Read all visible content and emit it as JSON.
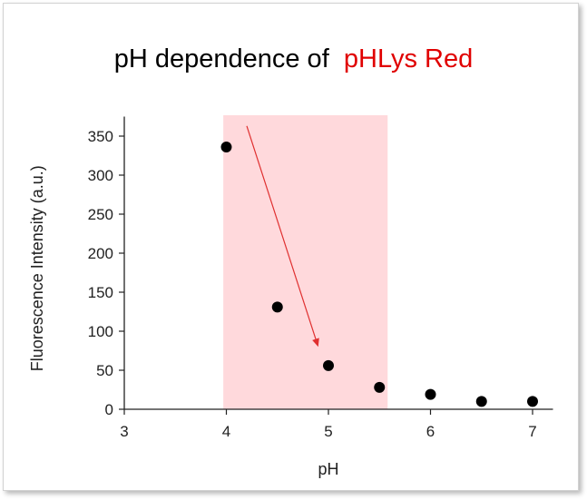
{
  "title": {
    "main": "pH dependence of  ",
    "accent": "pHLys Red"
  },
  "colors": {
    "accent": "#e00000",
    "highlight": "#ffd9dc",
    "arrow": "#e03030",
    "points": "#000000"
  },
  "chart_data": {
    "type": "scatter",
    "title": "pH dependence of  pHLys Red",
    "xlabel": "pH",
    "ylabel": "Fluorescence Intensity (a.u.)",
    "xlim": [
      3,
      7.2
    ],
    "ylim": [
      0,
      375
    ],
    "xticks": [
      3,
      4,
      5,
      6,
      7
    ],
    "yticks": [
      0,
      50,
      100,
      150,
      200,
      250,
      300,
      350
    ],
    "grid": false,
    "x": [
      4,
      4.5,
      5,
      5.5,
      6,
      6.5,
      7
    ],
    "y": [
      336,
      131,
      56,
      28,
      19,
      10,
      10
    ],
    "highlight_region": {
      "x": [
        3.97,
        5.58
      ]
    },
    "annotations": [
      {
        "type": "arrow",
        "from": [
          4.2,
          363
        ],
        "to": [
          4.9,
          80
        ]
      }
    ]
  }
}
